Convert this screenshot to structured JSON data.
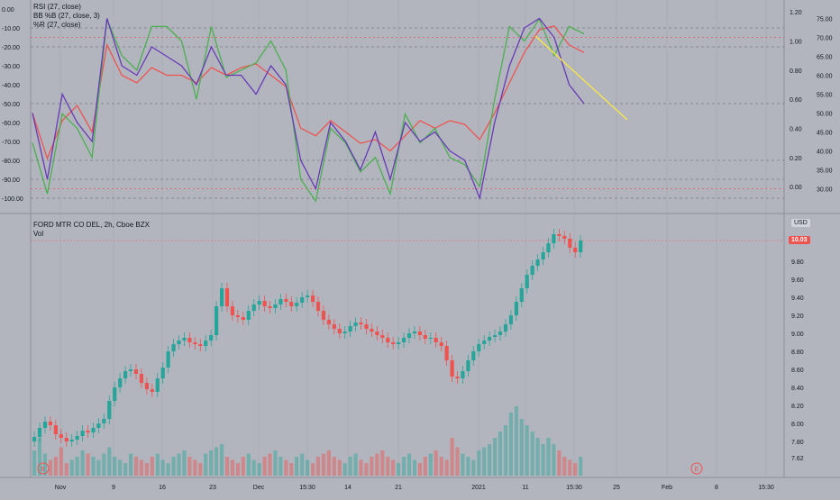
{
  "symbol": {
    "title": "FORD MTR CO DEL, 2h, Cboe BZX",
    "vol_label": "Vol",
    "currency": "USD",
    "last_price": "10.03",
    "last_price_color": "#ef5350"
  },
  "indicators": {
    "rsi": "RSI (27, close)",
    "bb": "BB %B (27, close, 3)",
    "wr": "%R (27, close)"
  },
  "colors": {
    "background": "#b2b5be",
    "up": "#26a69a",
    "down": "#ef5350",
    "rsi": "#ef5350",
    "bb": "#4caf50",
    "wr": "#673ab7",
    "trendline": "#ffeb3b",
    "grid": "#a4a7b0"
  },
  "chart_data": [
    {
      "type": "line",
      "name": "indicator-pane",
      "series": [
        {
          "name": "RSI (27, close)",
          "axis": "right",
          "x": [
            0,
            8,
            16,
            24,
            32,
            40,
            48,
            56,
            64,
            72,
            80,
            88,
            96,
            104,
            112,
            120,
            128,
            136,
            144,
            152,
            160,
            168,
            176,
            184,
            192,
            200,
            208,
            216,
            224,
            232,
            240,
            248,
            256,
            264,
            272,
            280,
            288,
            296
          ],
          "values": [
            50,
            38,
            48,
            52,
            45,
            68,
            60,
            58,
            62,
            60,
            60,
            58,
            62,
            60,
            62,
            63,
            60,
            57,
            46,
            44,
            48,
            45,
            42,
            43,
            40,
            44,
            48,
            46,
            48,
            47,
            43,
            50,
            58,
            66,
            72,
            73,
            68,
            66
          ]
        },
        {
          "name": "BB %B (27, close, 3)",
          "axis": "right",
          "x": [
            0,
            8,
            16,
            24,
            32,
            40,
            48,
            56,
            64,
            72,
            80,
            88,
            96,
            104,
            112,
            120,
            128,
            136,
            144,
            152,
            160,
            168,
            176,
            184,
            192,
            200,
            208,
            216,
            224,
            232,
            240,
            248,
            256,
            264,
            272,
            280,
            288,
            296
          ],
          "values": [
            0.3,
            -0.05,
            0.5,
            0.4,
            0.2,
            1.15,
            0.9,
            0.8,
            1.1,
            1.1,
            1.0,
            0.6,
            1.1,
            0.75,
            0.8,
            0.85,
            1.0,
            0.8,
            0.05,
            -0.1,
            0.4,
            0.3,
            0.1,
            0.2,
            -0.05,
            0.5,
            0.3,
            0.4,
            0.2,
            0.15,
            0.0,
            0.6,
            1.1,
            1.0,
            1.15,
            0.9,
            1.1,
            1.05
          ]
        },
        {
          "name": "%R (27, close)",
          "axis": "left",
          "x": [
            0,
            8,
            16,
            24,
            32,
            40,
            48,
            56,
            64,
            72,
            80,
            88,
            96,
            104,
            112,
            120,
            128,
            136,
            144,
            152,
            160,
            168,
            176,
            184,
            192,
            200,
            208,
            216,
            224,
            232,
            240,
            248,
            256,
            264,
            272,
            280,
            288,
            296
          ],
          "values": [
            -55,
            -90,
            -45,
            -60,
            -70,
            -5,
            -30,
            -35,
            -20,
            -25,
            -30,
            -40,
            -20,
            -35,
            -35,
            -45,
            -30,
            -40,
            -80,
            -95,
            -60,
            -70,
            -85,
            -65,
            -90,
            -60,
            -70,
            -65,
            -75,
            -80,
            -100,
            -60,
            -30,
            -10,
            -5,
            -15,
            -40,
            -50
          ]
        }
      ],
      "reference_lines_left": [
        -10,
        -20,
        -50,
        -80,
        -90,
        -100
      ],
      "reference_lines_right": [
        30,
        70
      ],
      "left_ticks": [
        "0.00",
        "-10.00",
        "-20.00",
        "-30.00",
        "-40.00",
        "-50.00",
        "-60.00",
        "-70.00",
        "-80.00",
        "-90.00",
        "-100.00"
      ],
      "right_ticks_bb": [
        "1.20",
        "1.00",
        "0.80",
        "0.60",
        "0.40",
        "0.20",
        "0.00"
      ],
      "right_ticks_rsi": [
        "75.00",
        "70.00",
        "65.00",
        "60.00",
        "55.00",
        "50.00",
        "45.00",
        "40.00",
        "35.00",
        "30.00"
      ],
      "ylim_left": [
        -100,
        0
      ],
      "ylim_right_rsi": [
        27.5,
        77.5
      ],
      "ylim_right_bb": [
        -0.08,
        1.22
      ]
    },
    {
      "type": "candlestick",
      "name": "price-pane",
      "title": "FORD MTR CO DEL, 2h, Cboe BZX",
      "ylim": [
        7.5,
        10.2
      ],
      "y_ticks": [
        "9.80",
        "9.60",
        "9.40",
        "9.20",
        "9.00",
        "8.80",
        "8.60",
        "8.40",
        "8.20",
        "8.00",
        "7.80",
        "7.62"
      ],
      "x_labels": [
        "Nov",
        "9",
        "16",
        "23",
        "Dec",
        "15:30",
        "14",
        "21",
        "2021",
        "11",
        "15:30",
        "25",
        "Feb",
        "8",
        "15:30"
      ],
      "close": [
        7.85,
        7.95,
        8.02,
        7.98,
        7.88,
        7.84,
        7.8,
        7.82,
        7.86,
        7.92,
        7.9,
        7.95,
        8.0,
        8.05,
        8.25,
        8.4,
        8.5,
        8.58,
        8.6,
        8.55,
        8.45,
        8.38,
        8.35,
        8.5,
        8.62,
        8.8,
        8.88,
        8.92,
        8.95,
        8.9,
        8.88,
        8.86,
        8.92,
        8.98,
        9.3,
        9.5,
        9.3,
        9.2,
        9.18,
        9.15,
        9.25,
        9.32,
        9.36,
        9.3,
        9.28,
        9.32,
        9.38,
        9.35,
        9.3,
        9.34,
        9.4,
        9.42,
        9.35,
        9.25,
        9.15,
        9.1,
        9.05,
        9.0,
        9.02,
        9.08,
        9.12,
        9.1,
        9.05,
        9.02,
        8.98,
        8.95,
        8.9,
        8.88,
        8.9,
        8.95,
        9.0,
        9.02,
        8.98,
        8.94,
        8.95,
        8.9,
        8.86,
        8.7,
        8.52,
        8.5,
        8.58,
        8.7,
        8.8,
        8.88,
        8.92,
        8.96,
        8.98,
        9.02,
        9.1,
        9.2,
        9.35,
        9.5,
        9.65,
        9.75,
        9.82,
        9.9,
        10.0,
        10.1,
        10.08,
        10.05,
        9.95,
        9.9,
        10.03
      ],
      "volume": [
        40,
        60,
        35,
        25,
        30,
        45,
        20,
        25,
        30,
        40,
        35,
        30,
        25,
        35,
        45,
        30,
        25,
        20,
        35,
        30,
        25,
        20,
        30,
        35,
        25,
        20,
        30,
        35,
        40,
        30,
        25,
        20,
        35,
        40,
        45,
        50,
        30,
        25,
        20,
        30,
        35,
        25,
        20,
        30,
        35,
        40,
        30,
        25,
        20,
        30,
        35,
        25,
        20,
        30,
        35,
        40,
        30,
        25,
        20,
        30,
        35,
        25,
        20,
        30,
        35,
        40,
        30,
        25,
        20,
        30,
        35,
        25,
        20,
        30,
        35,
        40,
        30,
        25,
        60,
        45,
        35,
        30,
        25,
        40,
        45,
        50,
        60,
        70,
        80,
        100,
        110,
        90,
        80,
        70,
        60,
        50,
        60,
        50,
        40,
        30,
        25,
        20,
        30
      ],
      "markers": [
        "E",
        "E"
      ]
    }
  ]
}
